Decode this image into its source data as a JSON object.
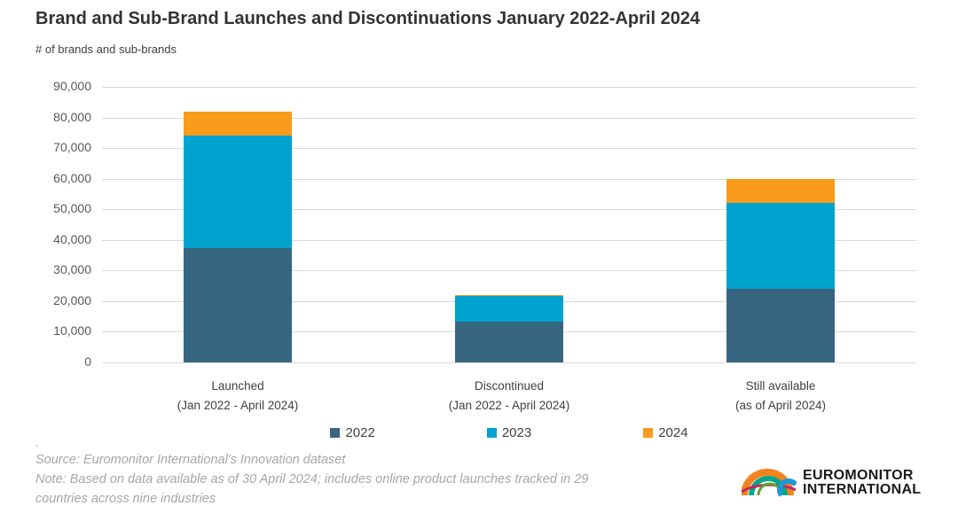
{
  "header": {
    "title": "Brand and Sub-Brand Launches and Discontinuations January 2022-April 2024",
    "subtitle": "# of brands and sub-brands"
  },
  "chart_data": {
    "type": "bar",
    "stacked": true,
    "title": "Brand and Sub-Brand Launches and Discontinuations January 2022-April 2024",
    "ylabel": "# of brands and sub-brands",
    "xlabel": "",
    "ylim": [
      0,
      90000
    ],
    "ytick_step": 10000,
    "grid": true,
    "legend_position": "bottom",
    "categories": [
      {
        "label": "Launched",
        "sublabel": "(Jan 2022 - April 2024)"
      },
      {
        "label": "Discontinued",
        "sublabel": "(Jan 2022 - April 2024)"
      },
      {
        "label": "Still available",
        "sublabel": "(as of April 2024)"
      }
    ],
    "series": [
      {
        "name": "2022",
        "color": "#38657F",
        "values": [
          37400,
          13400,
          24000
        ]
      },
      {
        "name": "2023",
        "color": "#00A3CE",
        "values": [
          36600,
          8300,
          28200
        ]
      },
      {
        "name": "2024",
        "color": "#F99B1B",
        "values": [
          8000,
          300,
          7800
        ]
      }
    ],
    "stack_totals": [
      82000,
      22000,
      60000
    ]
  },
  "footer": {
    "dot": ".",
    "source": "Source: Euromonitor International's Innovation dataset",
    "note_lines": [
      "Note: Based on data available as of 30 April 2024; includes online product launches tracked in 29",
      "countries across nine industries"
    ]
  },
  "logo": {
    "line1": "EUROMONITOR",
    "line2": "INTERNATIONAL"
  }
}
